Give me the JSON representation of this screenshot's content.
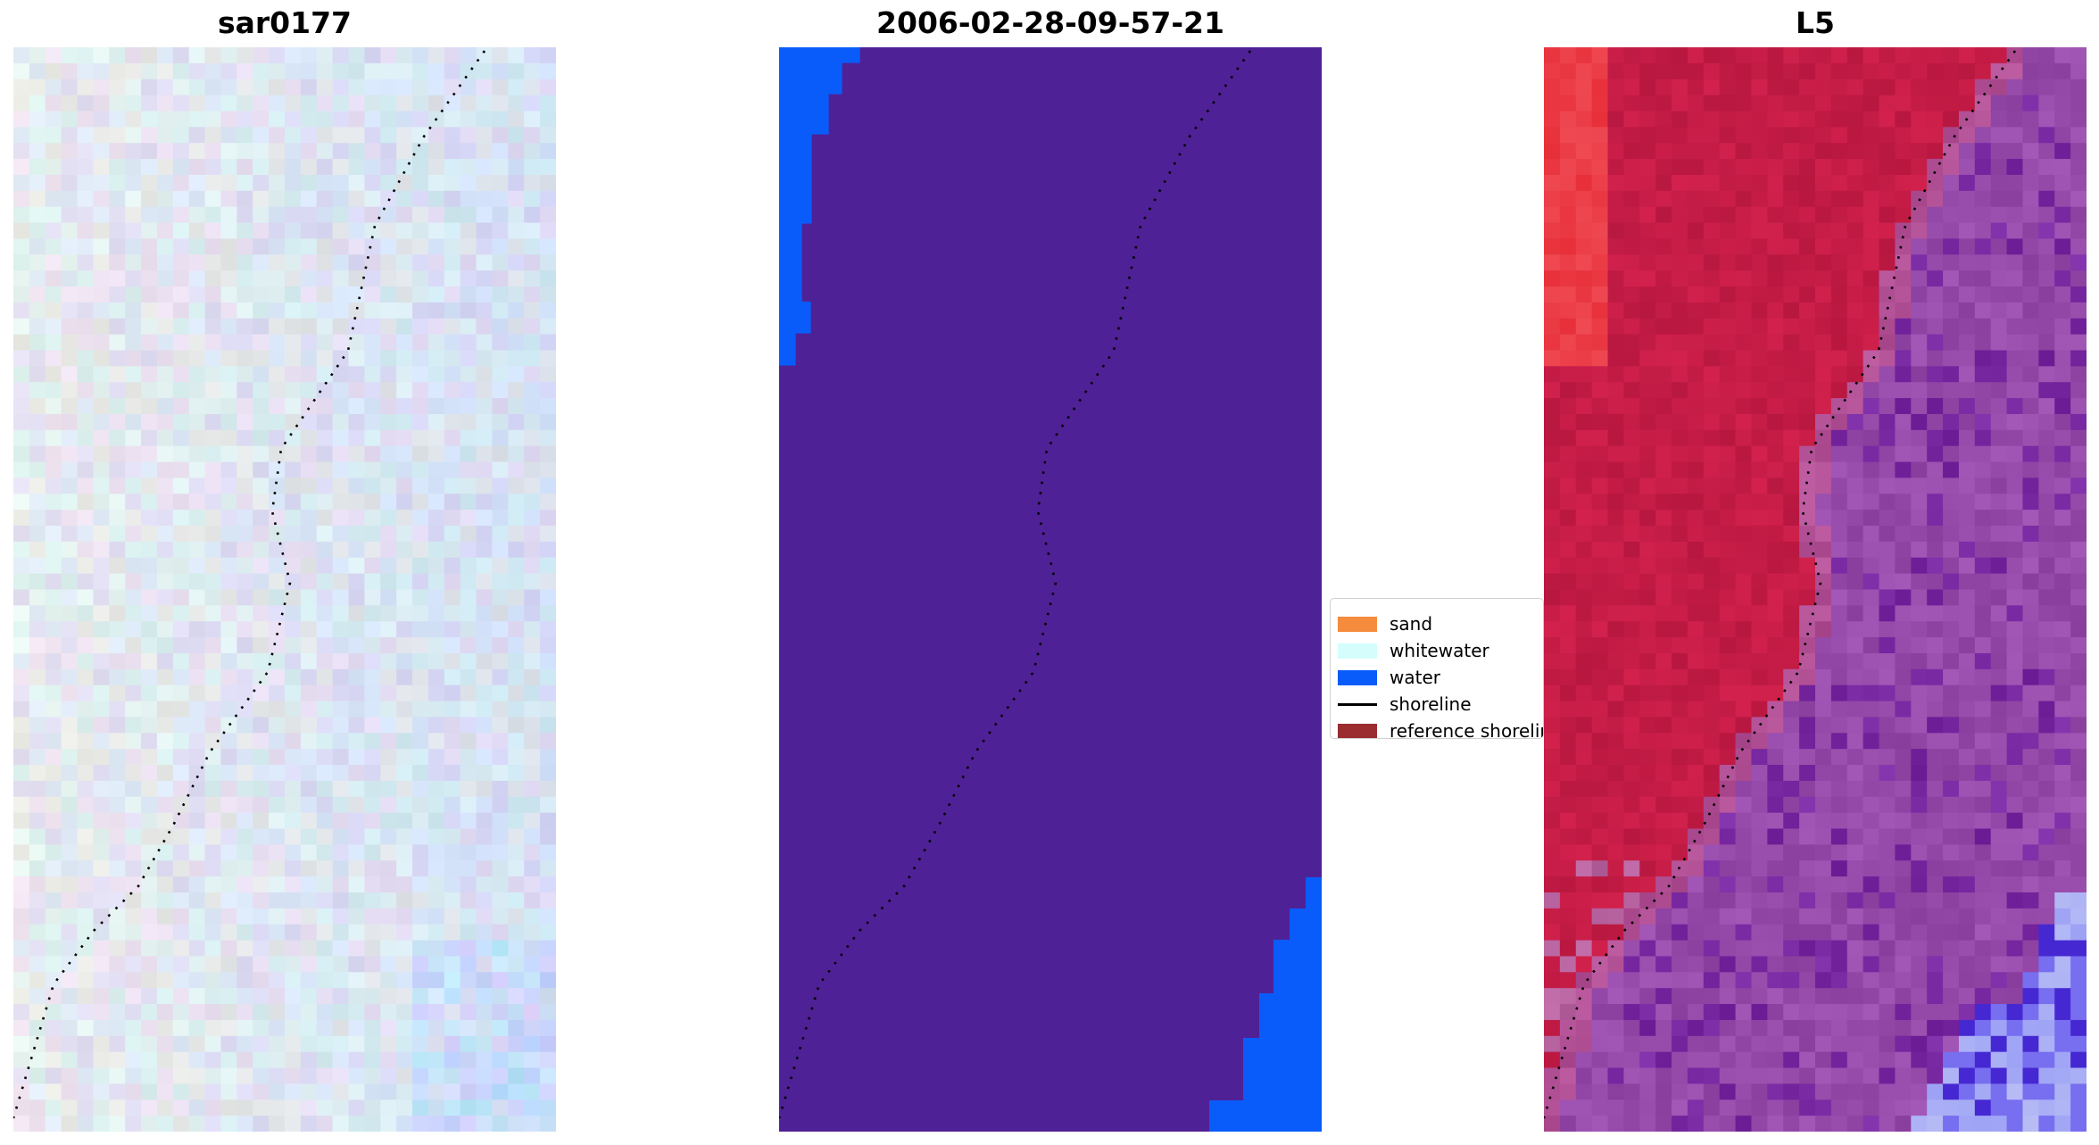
{
  "panels": [
    {
      "id": "p1",
      "title": "sar0177"
    },
    {
      "id": "p2",
      "title": "2006-02-28-09-57-21"
    },
    {
      "id": "p3",
      "title": "L5"
    }
  ],
  "legend": {
    "items": [
      {
        "label": "sand",
        "color": "#f58b3c",
        "kind": "patch"
      },
      {
        "label": "whitewater",
        "color": "#d4fdfc",
        "kind": "patch"
      },
      {
        "label": "water",
        "color": "#0a5cfa",
        "kind": "patch"
      },
      {
        "label": "shoreline",
        "color": "#000000",
        "kind": "line"
      },
      {
        "label": "reference shoreline",
        "color": "#9b2d30",
        "kind": "patch"
      }
    ]
  },
  "colors": {
    "classification_background": "#4f2196",
    "water": "#0a5cfa",
    "shoreline_dots": "#000000"
  }
}
